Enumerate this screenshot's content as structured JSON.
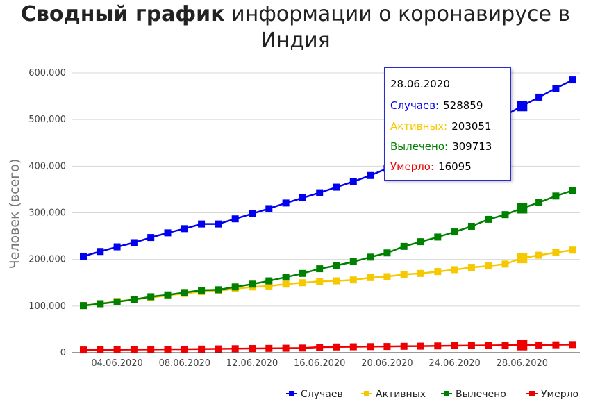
{
  "title": {
    "bold": "Сводный график",
    "rest": " информации о коронавирусе в Индия"
  },
  "chart_data": {
    "type": "line",
    "ylabel": "Человек (всего)",
    "xlabel": "",
    "ylim": [
      0,
      600000
    ],
    "yticks": [
      0,
      100000,
      200000,
      300000,
      400000,
      500000,
      600000
    ],
    "ytick_labels": [
      "0",
      "100,000",
      "200,000",
      "300,000",
      "400,000",
      "500,000",
      "600,000"
    ],
    "xtick_labels": [
      "04.06.2020",
      "08.06.2020",
      "12.06.2020",
      "16.06.2020",
      "20.06.2020",
      "24.06.2020",
      "28.06.2020"
    ],
    "xtick_days": [
      4,
      8,
      12,
      16,
      20,
      24,
      28
    ],
    "dates": [
      "02.06.2020",
      "03.06.2020",
      "04.06.2020",
      "05.06.2020",
      "06.06.2020",
      "07.06.2020",
      "08.06.2020",
      "09.06.2020",
      "10.06.2020",
      "11.06.2020",
      "12.06.2020",
      "13.06.2020",
      "14.06.2020",
      "15.06.2020",
      "16.06.2020",
      "17.06.2020",
      "18.06.2020",
      "19.06.2020",
      "20.06.2020",
      "21.06.2020",
      "22.06.2020",
      "23.06.2020",
      "24.06.2020",
      "25.06.2020",
      "26.06.2020",
      "27.06.2020",
      "28.06.2020",
      "29.06.2020",
      "30.06.2020",
      "01.07.2020"
    ],
    "grid": true,
    "legend_position": "bottom-right",
    "series": [
      {
        "name": "Случаев",
        "color": "#0000ee",
        "values": [
          207000,
          217000,
          227000,
          236000,
          247000,
          257000,
          266000,
          276000,
          276000,
          287000,
          298000,
          309000,
          321000,
          332000,
          343000,
          355000,
          367000,
          380000,
          395000,
          410000,
          425000,
          440000,
          456000,
          472000,
          490000,
          509000,
          528859,
          548000,
          567000,
          585000
        ]
      },
      {
        "name": "Активных",
        "color": "#f5c800",
        "values": [
          101000,
          105000,
          110000,
          114000,
          118000,
          123000,
          127000,
          131000,
          133000,
          137000,
          141000,
          143000,
          147000,
          150000,
          153000,
          154000,
          156000,
          161000,
          163000,
          168000,
          170000,
          174000,
          178000,
          183000,
          186000,
          190000,
          203051,
          209000,
          215000,
          220000
        ]
      },
      {
        "name": "Вылечено",
        "color": "#008000",
        "values": [
          101000,
          105000,
          109000,
          114000,
          120000,
          124000,
          129000,
          134000,
          135000,
          141000,
          147000,
          154000,
          162000,
          170000,
          180000,
          187000,
          195000,
          205000,
          214000,
          228000,
          238000,
          248000,
          259000,
          271000,
          286000,
          296000,
          309713,
          322000,
          336000,
          348000
        ]
      },
      {
        "name": "Умерло",
        "color": "#ee0000",
        "values": [
          5815,
          6075,
          6363,
          6649,
          6946,
          7207,
          7473,
          7745,
          8102,
          8498,
          8884,
          9195,
          9520,
          9900,
          11903,
          12237,
          12573,
          12948,
          13254,
          13699,
          14011,
          14476,
          14894,
          15301,
          15685,
          16095,
          16095,
          16475,
          16893,
          17400
        ]
      }
    ]
  },
  "tooltip": {
    "date": "28.06.2020",
    "cases_label": "Случаев:",
    "cases_value": "528859",
    "active_label": "Активных:",
    "active_value": "203051",
    "recovered_label": "Вылечено:",
    "recovered_value": "309713",
    "deaths_label": "Умерло:",
    "deaths_value": "16095",
    "colors": {
      "cases": "#0000ee",
      "active": "#f5c800",
      "recovered": "#008000",
      "deaths": "#ee0000"
    }
  }
}
